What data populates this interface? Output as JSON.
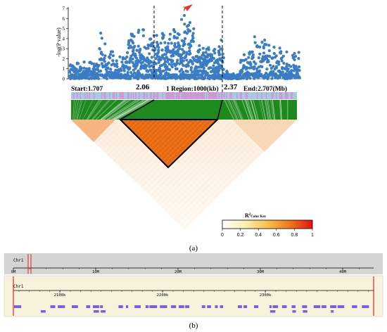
{
  "panel_a": {
    "label": "(a)",
    "ylabel": "-log(P value)",
    "y_ticks": [
      "0",
      "1",
      "2",
      "3",
      "4",
      "5",
      "6",
      "7"
    ],
    "marker_left": "2.06",
    "marker_right": "2.37",
    "start_label": "Start:1.707",
    "region_label": "1 Region:1000(kb)",
    "end_label": "End:2.707(Mb)",
    "colorkey_title": "R",
    "colorkey_sup": "2",
    "colorkey_sub": "Color Key",
    "colorkey_ticks": [
      "0",
      "0.2",
      "0.4",
      "0.6",
      "0.8",
      "1"
    ]
  },
  "panel_b": {
    "label": "(b)",
    "track1_chr": "Chr1",
    "track1_ticks": [
      "0M",
      "10M",
      "20M",
      "30M",
      "40M"
    ],
    "track2_chr": "Chr1",
    "track2_ticks": [
      "2100k",
      "2200k",
      "2300k"
    ]
  },
  "colors": {
    "points": "#3b7dc4",
    "arrow": "#e8352b",
    "green": "#1e8a1e",
    "ld_orange": "#e8761e",
    "gray_track": "#d4d4d4",
    "beige_track": "#f6f2dc",
    "gene": "#7a5fe0",
    "red_line": "#e02020"
  },
  "chart_data": {
    "type": "scatter",
    "x_range_mb": [
      1.707,
      2.707
    ],
    "ylim": [
      0,
      7
    ],
    "region_kb": 1000,
    "highlight_interval_mb": [
      2.06,
      2.37
    ]
  }
}
